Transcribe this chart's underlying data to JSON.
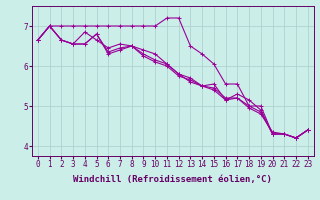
{
  "xlabel": "Windchill (Refroidissement éolien,°C)",
  "x": [
    0,
    1,
    2,
    3,
    4,
    5,
    6,
    7,
    8,
    9,
    10,
    11,
    12,
    13,
    14,
    15,
    16,
    17,
    18,
    19,
    20,
    21,
    22,
    23
  ],
  "lines": [
    [
      6.65,
      7.0,
      7.0,
      7.0,
      7.0,
      7.0,
      7.0,
      7.0,
      7.0,
      7.0,
      7.0,
      7.2,
      7.2,
      6.5,
      6.3,
      6.05,
      5.55,
      5.55,
      5.0,
      5.0,
      4.3,
      4.3,
      4.2,
      4.4
    ],
    [
      6.65,
      7.0,
      6.65,
      6.55,
      6.85,
      6.65,
      6.45,
      6.55,
      6.5,
      6.4,
      6.3,
      6.05,
      5.8,
      5.6,
      5.5,
      5.55,
      5.15,
      5.3,
      5.15,
      4.9,
      4.3,
      4.3,
      4.2,
      4.4
    ],
    [
      6.65,
      7.0,
      6.65,
      6.55,
      6.55,
      6.8,
      6.35,
      6.45,
      6.5,
      6.3,
      6.15,
      6.05,
      5.8,
      5.7,
      5.5,
      5.45,
      5.2,
      5.2,
      5.0,
      4.85,
      4.3,
      4.3,
      4.2,
      4.4
    ],
    [
      6.65,
      7.0,
      6.65,
      6.55,
      6.55,
      6.8,
      6.3,
      6.4,
      6.5,
      6.25,
      6.1,
      6.0,
      5.75,
      5.65,
      5.5,
      5.4,
      5.15,
      5.2,
      4.95,
      4.8,
      4.35,
      4.3,
      4.2,
      4.4
    ]
  ],
  "line_color": "#990099",
  "marker": "+",
  "markersize": 3,
  "linewidth": 0.8,
  "bg_color": "#cceee8",
  "grid_color": "#aacccc",
  "axis_color": "#660066",
  "plot_bg": "#cceee8",
  "ylim": [
    3.75,
    7.5
  ],
  "xlim": [
    -0.5,
    23.5
  ],
  "yticks": [
    4,
    5,
    6,
    7
  ],
  "xticks": [
    0,
    1,
    2,
    3,
    4,
    5,
    6,
    7,
    8,
    9,
    10,
    11,
    12,
    13,
    14,
    15,
    16,
    17,
    18,
    19,
    20,
    21,
    22,
    23
  ],
  "tick_fontsize": 5.5,
  "label_fontsize": 6.5,
  "fig_width": 3.2,
  "fig_height": 2.0,
  "fig_dpi": 100
}
